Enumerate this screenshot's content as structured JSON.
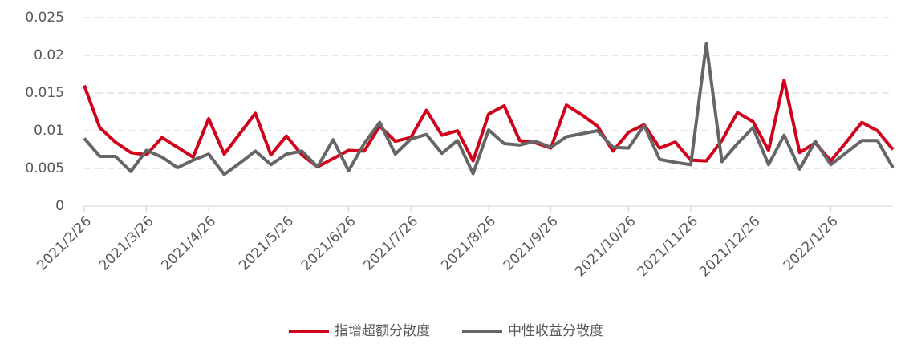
{
  "chart_data": {
    "type": "line",
    "categories": [
      "2021/2/26",
      null,
      null,
      null,
      "2021/3/26",
      null,
      null,
      null,
      "2021/4/26",
      null,
      null,
      null,
      null,
      "2021/5/26",
      null,
      null,
      null,
      "2021/6/26",
      null,
      null,
      null,
      "2021/7/26",
      null,
      null,
      null,
      null,
      "2021/8/26",
      null,
      null,
      null,
      "2021/9/26",
      null,
      null,
      null,
      null,
      "2021/10/26",
      null,
      null,
      null,
      "2021/11/26",
      null,
      null,
      null,
      "2021/12/26",
      null,
      null,
      null,
      null,
      "2022/1/26",
      null,
      null,
      null,
      null
    ],
    "series": [
      {
        "name": "指增超额分散度",
        "color": "#d0021b",
        "values": [
          0.016,
          0.0104,
          0.0085,
          0.0071,
          0.0068,
          0.0091,
          0.0078,
          0.0065,
          0.0116,
          0.0069,
          0.0096,
          0.0123,
          0.0068,
          0.0093,
          0.0068,
          0.0052,
          0.0063,
          0.0074,
          0.0073,
          0.0106,
          0.0086,
          0.0091,
          0.0127,
          0.0094,
          0.01,
          0.006,
          0.0122,
          0.0133,
          0.0087,
          0.0084,
          0.0077,
          0.0134,
          0.0121,
          0.0106,
          0.0073,
          0.0098,
          0.0108,
          0.0077,
          0.0085,
          0.0061,
          0.006,
          0.0087,
          0.0124,
          0.0112,
          0.0074,
          0.0167,
          0.0071,
          0.0084,
          0.006,
          0.0085,
          0.0111,
          0.01,
          0.0075
        ]
      },
      {
        "name": "中性收益分散度",
        "color": "#666666",
        "values": [
          0.009,
          0.0066,
          0.0066,
          0.0046,
          0.0074,
          0.0065,
          0.0051,
          0.0061,
          0.0069,
          0.0042,
          0.0057,
          0.0073,
          0.0055,
          0.0069,
          0.0073,
          0.0052,
          0.0088,
          0.0047,
          0.0083,
          0.0111,
          0.0069,
          0.0089,
          0.0095,
          0.007,
          0.0087,
          0.0043,
          0.0101,
          0.0083,
          0.0081,
          0.0086,
          0.0078,
          0.0092,
          0.0096,
          0.01,
          0.0078,
          0.0077,
          0.0107,
          0.0062,
          0.0058,
          0.0055,
          0.0215,
          0.0059,
          0.0083,
          0.0104,
          0.0055,
          0.0094,
          0.0049,
          0.0086,
          0.0055,
          0.0071,
          0.0087,
          0.0087,
          0.0051
        ]
      }
    ],
    "ylim": [
      0,
      0.025
    ],
    "yticks": [
      0,
      0.005,
      0.01,
      0.015,
      0.02,
      0.025
    ],
    "grid": true,
    "legend": "bottom"
  }
}
